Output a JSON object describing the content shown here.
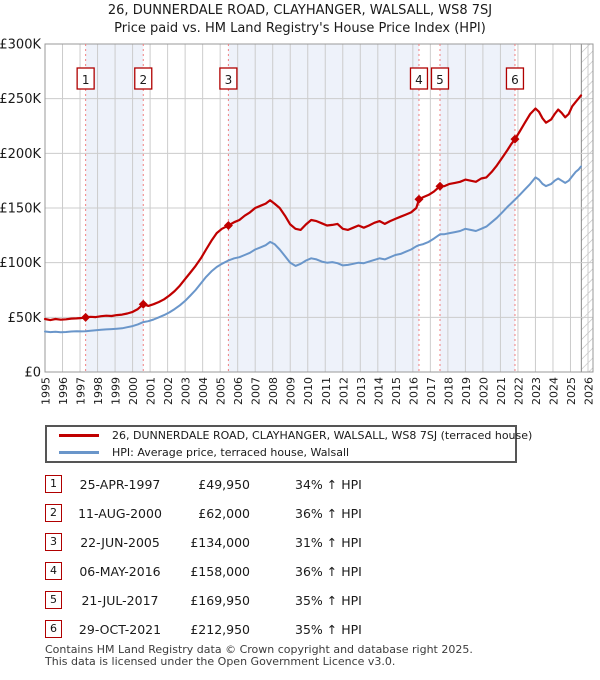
{
  "title": "26, DUNNERDALE ROAD, CLAYHANGER, WALSALL, WS8 7SJ",
  "subtitle": "Price paid vs. HM Land Registry's House Price Index (HPI)",
  "legend": [
    {
      "label": "26, DUNNERDALE ROAD, CLAYHANGER, WALSALL, WS8 7SJ (terraced house)",
      "color": "#c00000"
    },
    {
      "label": "HPI: Average price, terraced house, Walsall",
      "color": "#6a96ca"
    }
  ],
  "transactions": [
    {
      "num": "1",
      "date": "25-APR-1997",
      "price": "£49,950",
      "hpi": "34% ↑ HPI"
    },
    {
      "num": "2",
      "date": "11-AUG-2000",
      "price": "£62,000",
      "hpi": "36% ↑ HPI"
    },
    {
      "num": "3",
      "date": "22-JUN-2005",
      "price": "£134,000",
      "hpi": "31% ↑ HPI"
    },
    {
      "num": "4",
      "date": "06-MAY-2016",
      "price": "£158,000",
      "hpi": "36% ↑ HPI"
    },
    {
      "num": "5",
      "date": "21-JUL-2017",
      "price": "£169,950",
      "hpi": "35% ↑ HPI"
    },
    {
      "num": "6",
      "date": "29-OCT-2021",
      "price": "£212,950",
      "hpi": "35% ↑ HPI"
    }
  ],
  "footer": [
    "Contains HM Land Registry data © Crown copyright and database right 2025.",
    "This data is licensed under the Open Government Licence v3.0."
  ],
  "chart_data": {
    "type": "line",
    "x_range": [
      1995,
      2026
    ],
    "y_max_k": 300,
    "y_ticks": [
      {
        "v": 0,
        "label": "£0"
      },
      {
        "v": 50,
        "label": "£50K"
      },
      {
        "v": 100,
        "label": "£100K"
      },
      {
        "v": 150,
        "label": "£150K"
      },
      {
        "v": 200,
        "label": "£200K"
      },
      {
        "v": 250,
        "label": "£250K"
      },
      {
        "v": 300,
        "label": "£300K"
      }
    ],
    "x_ticks": [
      1995,
      1996,
      1997,
      1998,
      1999,
      2000,
      2001,
      2002,
      2003,
      2004,
      2005,
      2006,
      2007,
      2008,
      2009,
      2010,
      2011,
      2012,
      2013,
      2014,
      2015,
      2016,
      2017,
      2018,
      2019,
      2020,
      2021,
      2022,
      2023,
      2024,
      2025,
      2026
    ],
    "colors": {
      "band": "#eef2fa",
      "grid": "#cccccc",
      "frame": "#999999",
      "dash": "#f08080",
      "hatch": "#bbbbbb",
      "hatch_edge": "#888888"
    },
    "bands": [
      [
        1997.32,
        2000.61
      ],
      [
        2005.47,
        2016.35
      ],
      [
        2017.55,
        2021.83
      ]
    ],
    "hatch_start": 2025.62,
    "sales": [
      {
        "n": "1",
        "x": 1997.32,
        "y": 49.95
      },
      {
        "n": "2",
        "x": 2000.61,
        "y": 62
      },
      {
        "n": "3",
        "x": 2005.47,
        "y": 134
      },
      {
        "n": "4",
        "x": 2016.35,
        "y": 158
      },
      {
        "n": "5",
        "x": 2017.55,
        "y": 169.95
      },
      {
        "n": "6",
        "x": 2021.83,
        "y": 212.95
      }
    ],
    "series": [
      {
        "name": "HPI: Average price, terraced house, Walsall",
        "color": "#6a96ca",
        "width": 2,
        "points": [
          [
            1995.0,
            37
          ],
          [
            1995.3,
            36.5
          ],
          [
            1995.6,
            36.8
          ],
          [
            1995.9,
            36.3
          ],
          [
            1996.2,
            36.6
          ],
          [
            1996.5,
            37
          ],
          [
            1996.8,
            37.2
          ],
          [
            1997.1,
            37.1
          ],
          [
            1997.32,
            37.3
          ],
          [
            1997.6,
            37.8
          ],
          [
            1997.9,
            38.2
          ],
          [
            1998.2,
            38.6
          ],
          [
            1998.5,
            39
          ],
          [
            1998.8,
            39.2
          ],
          [
            1999.1,
            39.6
          ],
          [
            1999.4,
            40
          ],
          [
            1999.7,
            41
          ],
          [
            2000.0,
            42
          ],
          [
            2000.3,
            43.5
          ],
          [
            2000.61,
            45.6
          ],
          [
            2000.9,
            46.5
          ],
          [
            2001.2,
            48
          ],
          [
            2001.5,
            50
          ],
          [
            2001.8,
            52
          ],
          [
            2002.1,
            54.5
          ],
          [
            2002.4,
            57.5
          ],
          [
            2002.7,
            61
          ],
          [
            2003.0,
            65
          ],
          [
            2003.3,
            70
          ],
          [
            2003.6,
            75
          ],
          [
            2003.9,
            81
          ],
          [
            2004.2,
            87
          ],
          [
            2004.5,
            92
          ],
          [
            2004.8,
            96
          ],
          [
            2005.1,
            99
          ],
          [
            2005.47,
            102
          ],
          [
            2005.8,
            104
          ],
          [
            2006.1,
            105
          ],
          [
            2006.4,
            107
          ],
          [
            2006.7,
            109
          ],
          [
            2007.0,
            112
          ],
          [
            2007.3,
            114
          ],
          [
            2007.6,
            116
          ],
          [
            2007.85,
            119
          ],
          [
            2008.1,
            117
          ],
          [
            2008.4,
            112
          ],
          [
            2008.7,
            106
          ],
          [
            2009.0,
            100
          ],
          [
            2009.3,
            97
          ],
          [
            2009.6,
            99
          ],
          [
            2009.9,
            102
          ],
          [
            2010.2,
            104
          ],
          [
            2010.5,
            103
          ],
          [
            2010.8,
            101
          ],
          [
            2011.1,
            100
          ],
          [
            2011.4,
            100.5
          ],
          [
            2011.7,
            99.5
          ],
          [
            2012.0,
            97.5
          ],
          [
            2012.3,
            98
          ],
          [
            2012.6,
            99
          ],
          [
            2012.9,
            100
          ],
          [
            2013.2,
            99.5
          ],
          [
            2013.5,
            101
          ],
          [
            2013.8,
            102.5
          ],
          [
            2014.1,
            104
          ],
          [
            2014.4,
            103
          ],
          [
            2014.7,
            105
          ],
          [
            2015.0,
            107
          ],
          [
            2015.3,
            108
          ],
          [
            2015.6,
            110
          ],
          [
            2015.9,
            112
          ],
          [
            2016.2,
            115
          ],
          [
            2016.35,
            116
          ],
          [
            2016.6,
            117
          ],
          [
            2016.9,
            119
          ],
          [
            2017.2,
            122
          ],
          [
            2017.55,
            125.9
          ],
          [
            2017.8,
            126
          ],
          [
            2018.1,
            127
          ],
          [
            2018.4,
            128
          ],
          [
            2018.7,
            129
          ],
          [
            2019.0,
            131
          ],
          [
            2019.3,
            130
          ],
          [
            2019.6,
            129
          ],
          [
            2019.9,
            131
          ],
          [
            2020.2,
            133
          ],
          [
            2020.5,
            137
          ],
          [
            2020.8,
            141
          ],
          [
            2021.1,
            146
          ],
          [
            2021.4,
            151
          ],
          [
            2021.6,
            154
          ],
          [
            2021.83,
            157.7
          ],
          [
            2022.1,
            162
          ],
          [
            2022.4,
            167
          ],
          [
            2022.7,
            172
          ],
          [
            2023.0,
            178
          ],
          [
            2023.2,
            176
          ],
          [
            2023.4,
            172
          ],
          [
            2023.6,
            170
          ],
          [
            2023.9,
            172
          ],
          [
            2024.1,
            175
          ],
          [
            2024.3,
            177
          ],
          [
            2024.5,
            175
          ],
          [
            2024.7,
            173
          ],
          [
            2024.9,
            175
          ],
          [
            2025.1,
            179
          ],
          [
            2025.3,
            183
          ],
          [
            2025.45,
            185
          ],
          [
            2025.6,
            188
          ]
        ]
      },
      {
        "name": "26, DUNNERDALE ROAD, CLAYHANGER, WALSALL, WS8 7SJ (terraced house)",
        "color": "#c00000",
        "width": 2.2,
        "points": [
          [
            1995.0,
            48.5
          ],
          [
            1995.3,
            47.5
          ],
          [
            1995.6,
            48.5
          ],
          [
            1995.9,
            47.8
          ],
          [
            1996.2,
            48.2
          ],
          [
            1996.5,
            48.8
          ],
          [
            1996.8,
            49
          ],
          [
            1997.1,
            49.4
          ],
          [
            1997.32,
            49.95
          ],
          [
            1997.6,
            50.5
          ],
          [
            1997.9,
            50.2
          ],
          [
            1998.2,
            51
          ],
          [
            1998.5,
            51.5
          ],
          [
            1998.8,
            51.2
          ],
          [
            1999.1,
            52
          ],
          [
            1999.4,
            52.5
          ],
          [
            1999.7,
            53.5
          ],
          [
            2000.0,
            55
          ],
          [
            2000.3,
            57.5
          ],
          [
            2000.61,
            62
          ],
          [
            2000.9,
            60.5
          ],
          [
            2001.2,
            62
          ],
          [
            2001.5,
            64
          ],
          [
            2001.8,
            66.5
          ],
          [
            2002.1,
            70
          ],
          [
            2002.4,
            74
          ],
          [
            2002.7,
            79
          ],
          [
            2003.0,
            85
          ],
          [
            2003.3,
            91
          ],
          [
            2003.6,
            97
          ],
          [
            2003.9,
            104
          ],
          [
            2004.2,
            112
          ],
          [
            2004.5,
            120
          ],
          [
            2004.8,
            127
          ],
          [
            2005.1,
            131
          ],
          [
            2005.47,
            134
          ],
          [
            2005.8,
            137
          ],
          [
            2006.1,
            139
          ],
          [
            2006.4,
            143
          ],
          [
            2006.7,
            146
          ],
          [
            2007.0,
            150
          ],
          [
            2007.3,
            152
          ],
          [
            2007.6,
            154
          ],
          [
            2007.85,
            157
          ],
          [
            2008.1,
            154
          ],
          [
            2008.4,
            150
          ],
          [
            2008.7,
            143
          ],
          [
            2009.0,
            135
          ],
          [
            2009.3,
            131
          ],
          [
            2009.6,
            130
          ],
          [
            2009.9,
            135
          ],
          [
            2010.2,
            139
          ],
          [
            2010.5,
            138
          ],
          [
            2010.8,
            136
          ],
          [
            2011.1,
            134
          ],
          [
            2011.4,
            134.5
          ],
          [
            2011.7,
            135.5
          ],
          [
            2012.0,
            131
          ],
          [
            2012.3,
            130
          ],
          [
            2012.6,
            132
          ],
          [
            2012.9,
            134
          ],
          [
            2013.2,
            132
          ],
          [
            2013.5,
            134
          ],
          [
            2013.8,
            136.5
          ],
          [
            2014.1,
            138
          ],
          [
            2014.4,
            135.5
          ],
          [
            2014.7,
            138
          ],
          [
            2015.0,
            140
          ],
          [
            2015.3,
            142
          ],
          [
            2015.6,
            144
          ],
          [
            2015.9,
            146
          ],
          [
            2016.2,
            150
          ],
          [
            2016.35,
            158
          ],
          [
            2016.6,
            160
          ],
          [
            2016.9,
            162
          ],
          [
            2017.2,
            165
          ],
          [
            2017.55,
            169.95
          ],
          [
            2017.8,
            170
          ],
          [
            2018.1,
            172
          ],
          [
            2018.4,
            173
          ],
          [
            2018.7,
            174
          ],
          [
            2019.0,
            176
          ],
          [
            2019.3,
            175
          ],
          [
            2019.6,
            174
          ],
          [
            2019.9,
            177
          ],
          [
            2020.2,
            178
          ],
          [
            2020.5,
            183
          ],
          [
            2020.8,
            189
          ],
          [
            2021.1,
            196
          ],
          [
            2021.4,
            203
          ],
          [
            2021.6,
            208
          ],
          [
            2021.83,
            212.95
          ],
          [
            2022.1,
            220
          ],
          [
            2022.4,
            228
          ],
          [
            2022.7,
            236
          ],
          [
            2023.0,
            241
          ],
          [
            2023.2,
            238
          ],
          [
            2023.4,
            232
          ],
          [
            2023.6,
            228
          ],
          [
            2023.9,
            231
          ],
          [
            2024.1,
            236
          ],
          [
            2024.3,
            240
          ],
          [
            2024.5,
            237
          ],
          [
            2024.7,
            233
          ],
          [
            2024.9,
            236
          ],
          [
            2025.1,
            243
          ],
          [
            2025.3,
            247
          ],
          [
            2025.45,
            250
          ],
          [
            2025.6,
            253
          ]
        ]
      }
    ]
  }
}
